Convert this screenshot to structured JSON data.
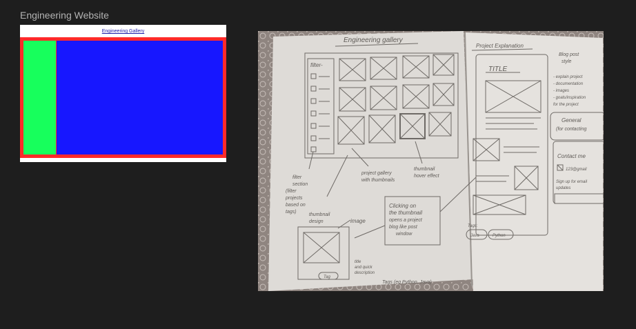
{
  "canvas": {
    "frame_title": "Engineering Website",
    "background": "#1e1e1e"
  },
  "mockup": {
    "nav_link": "Engineering  Gallery",
    "colors": {
      "border": "#ff2a2a",
      "sidebar": "#17ff5c",
      "main": "#1717ff"
    }
  },
  "sketch": {
    "left_page": {
      "header": "Engineering  gallery",
      "filter_label": "filter-",
      "filter_note": [
        "filter",
        "section",
        "(filter",
        "projects",
        "based on",
        "tags)"
      ],
      "gallery_note": [
        "project gallery",
        "with thumbnails"
      ],
      "thumb_note": [
        "thumbnail",
        "hover effect"
      ],
      "thumb_design_label": [
        "thumbnail",
        "design"
      ],
      "image_label": "image",
      "click_note": [
        "Clicking on",
        "the thumbnail",
        "opens a project",
        "blog like post",
        "window"
      ],
      "title_note": [
        "title",
        "and quick",
        "description"
      ],
      "tag_button": "Tag",
      "tags_note": "Tags (eg Python, Java)"
    },
    "right_page": {
      "header": "Project Explanation",
      "title": "TITLE",
      "blog_note": [
        "Blog post",
        "style"
      ],
      "bullets": [
        "- explain project",
        "- documentation",
        "- images",
        "- goals/inspiration",
        "  for the project"
      ],
      "general_title": "General",
      "general_sub": "(for contacting",
      "contact_title": "Contact me",
      "contact_email": "123@gmail",
      "signup": [
        "Sign up for email",
        "updates"
      ],
      "tags_label": "Tags:",
      "tag_a": "Java",
      "tag_b": "Python"
    }
  }
}
